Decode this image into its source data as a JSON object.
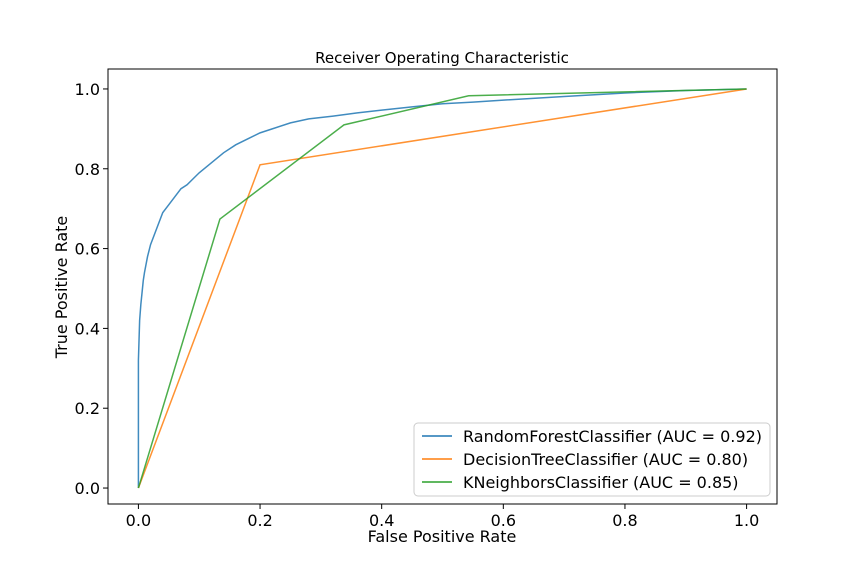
{
  "chart_data": {
    "type": "line",
    "title": "Receiver Operating Characteristic",
    "xlabel": "False Positive Rate",
    "ylabel": "True Positive Rate",
    "xlim": [
      -0.05,
      1.05
    ],
    "ylim": [
      -0.04,
      1.05
    ],
    "xticks": [
      0.0,
      0.2,
      0.4,
      0.6,
      0.8,
      1.0
    ],
    "yticks": [
      0.0,
      0.2,
      0.4,
      0.6,
      0.8,
      1.0
    ],
    "xtick_labels": [
      "0.0",
      "0.2",
      "0.4",
      "0.6",
      "0.8",
      "1.0"
    ],
    "ytick_labels": [
      "0.0",
      "0.2",
      "0.4",
      "0.6",
      "0.8",
      "1.0"
    ],
    "grid": false,
    "legend_position": "lower-right",
    "series": [
      {
        "name": "RandomForestClassifier (AUC = 0.92)",
        "color": "#1f77b4",
        "x": [
          0.0,
          0.0,
          0.002,
          0.004,
          0.006,
          0.008,
          0.01,
          0.015,
          0.02,
          0.025,
          0.03,
          0.04,
          0.05,
          0.06,
          0.07,
          0.08,
          0.09,
          0.1,
          0.12,
          0.14,
          0.16,
          0.18,
          0.2,
          0.22,
          0.25,
          0.28,
          0.32,
          0.36,
          0.4,
          0.45,
          0.5,
          0.55,
          0.6,
          0.7,
          0.8,
          0.9,
          1.0
        ],
        "y": [
          0.0,
          0.32,
          0.42,
          0.46,
          0.49,
          0.52,
          0.54,
          0.58,
          0.61,
          0.63,
          0.65,
          0.69,
          0.71,
          0.73,
          0.75,
          0.76,
          0.775,
          0.79,
          0.815,
          0.84,
          0.86,
          0.875,
          0.89,
          0.9,
          0.915,
          0.925,
          0.932,
          0.94,
          0.947,
          0.955,
          0.963,
          0.967,
          0.972,
          0.981,
          0.99,
          0.996,
          1.0
        ]
      },
      {
        "name": "DecisionTreeClassifier (AUC = 0.80)",
        "color": "#ff7f0e",
        "x": [
          0.0,
          0.2,
          1.0
        ],
        "y": [
          0.0,
          0.81,
          1.0
        ]
      },
      {
        "name": "KNeighborsClassifier (AUC = 0.85)",
        "color": "#2ca02c",
        "x": [
          0.0,
          0.134,
          0.338,
          0.543,
          1.0
        ],
        "y": [
          0.0,
          0.674,
          0.91,
          0.983,
          1.0
        ]
      }
    ]
  }
}
